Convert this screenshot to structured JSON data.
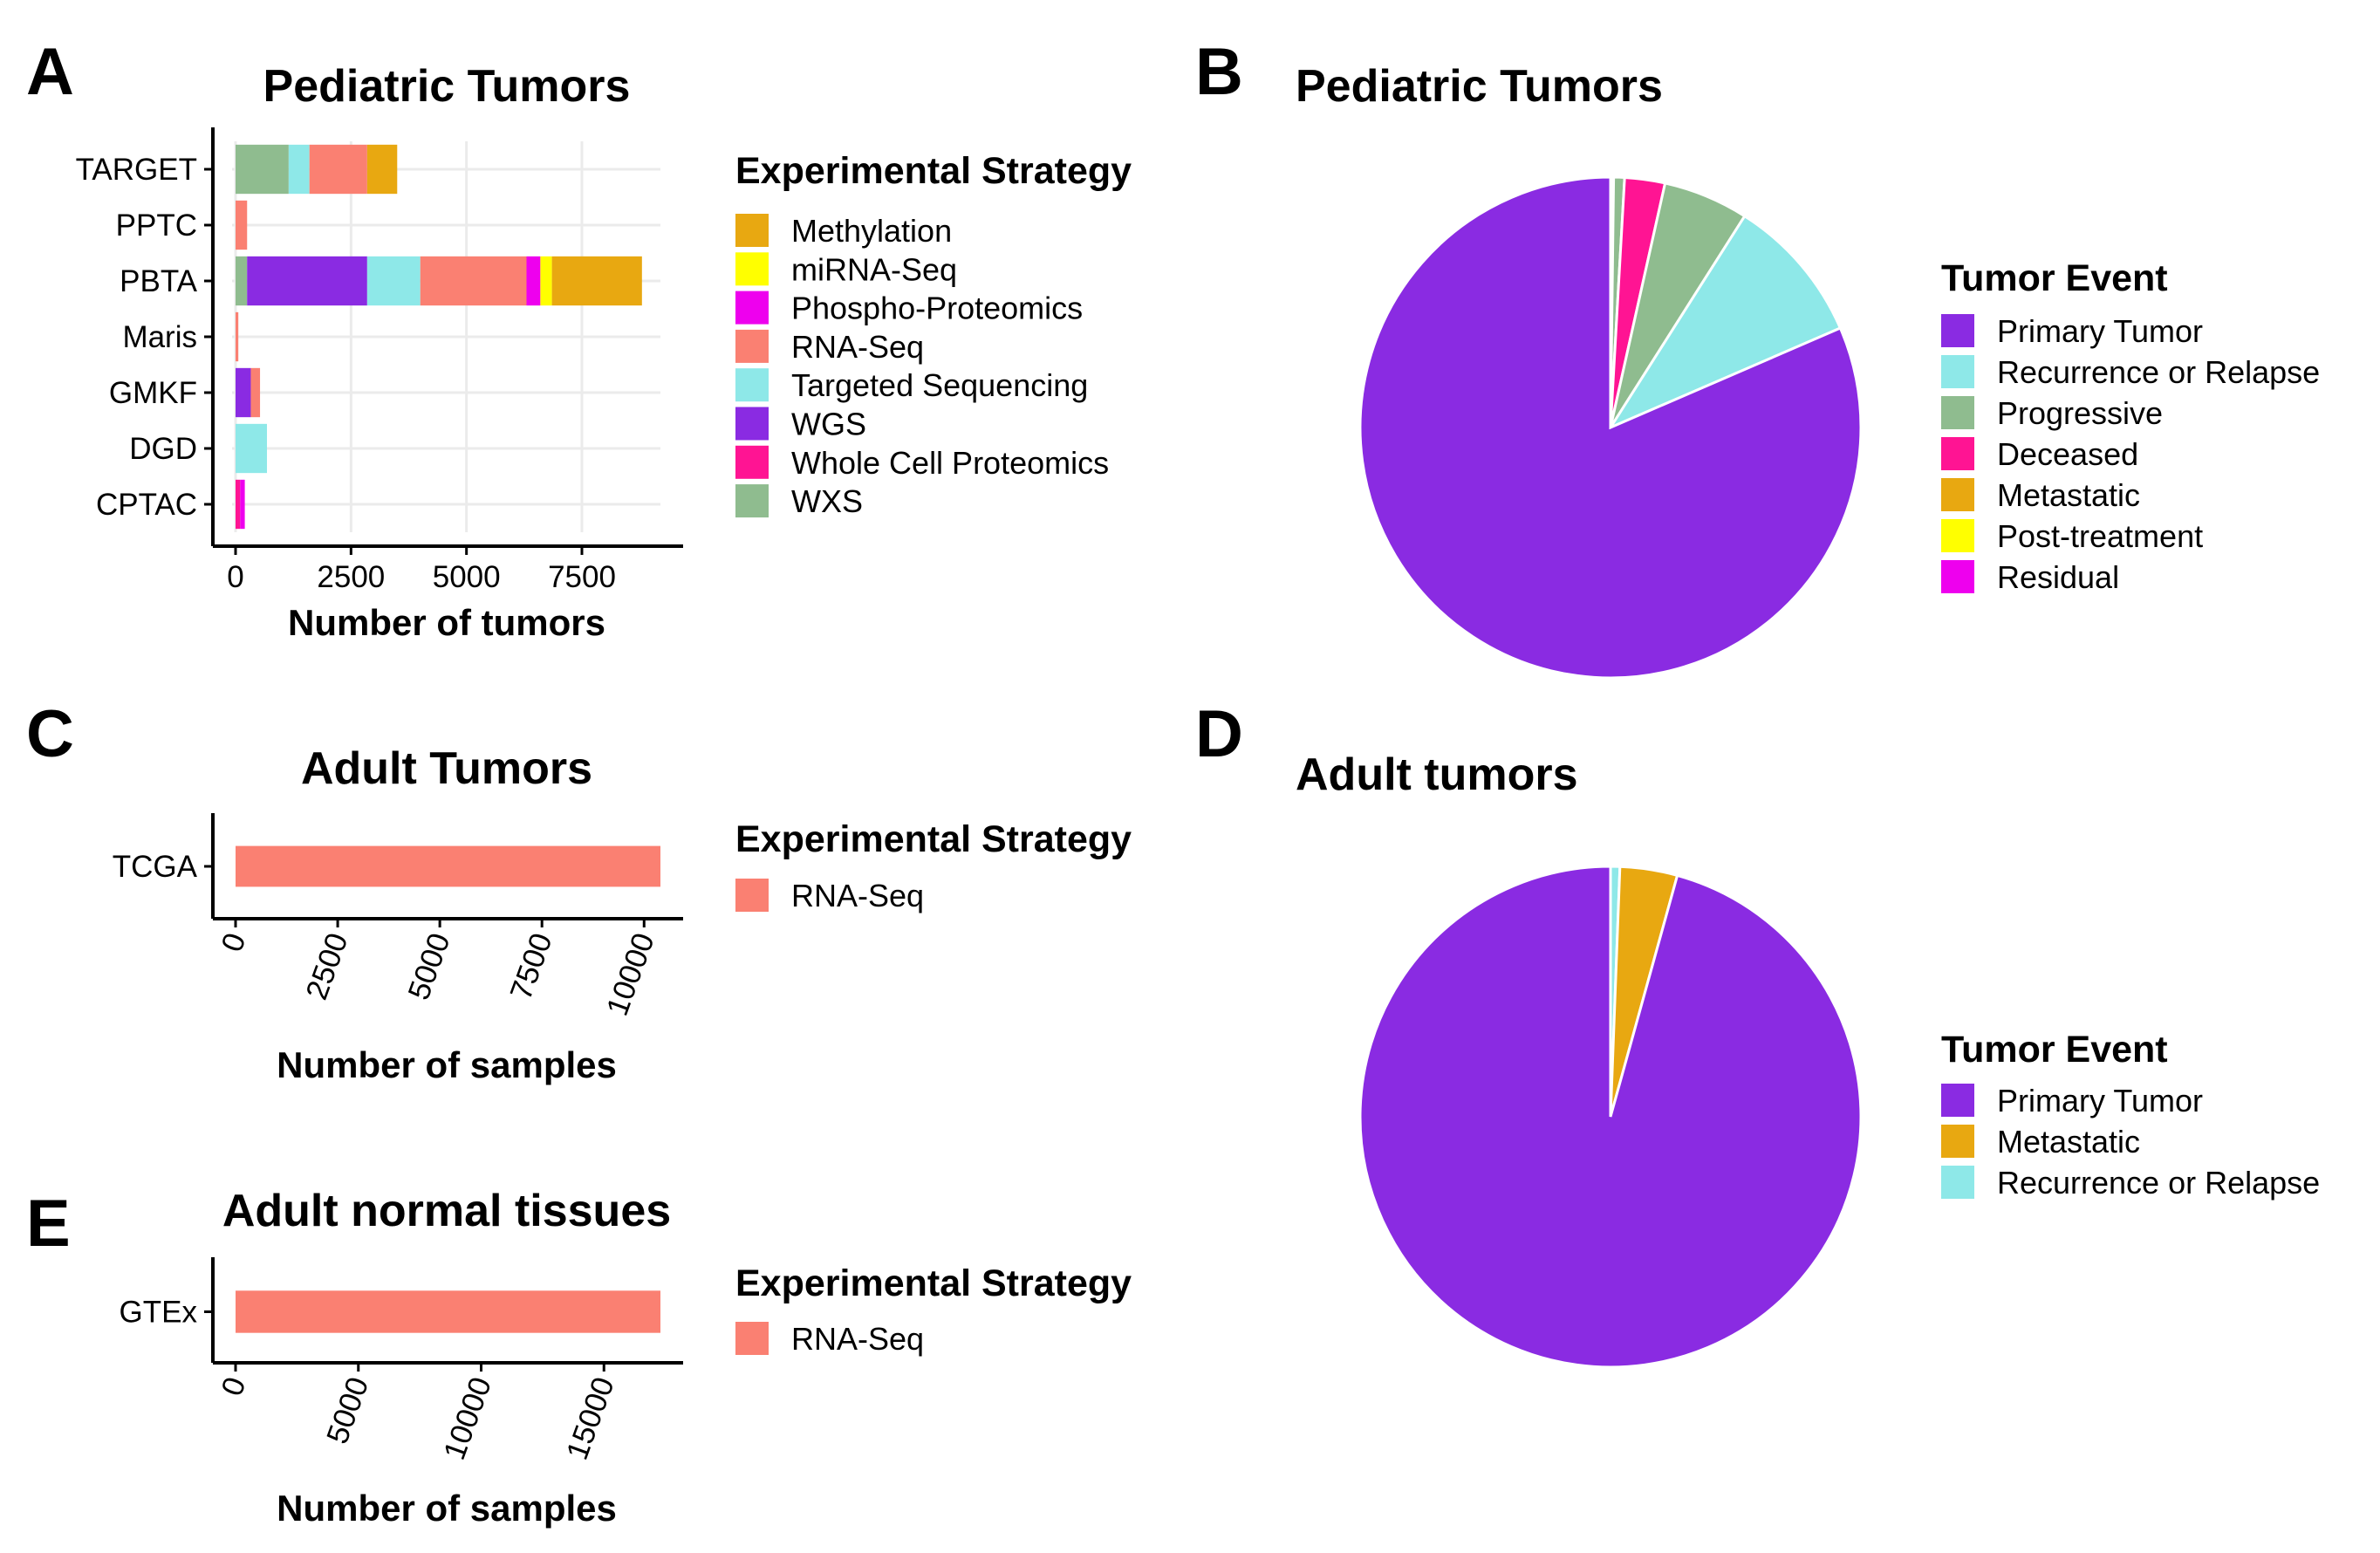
{
  "chart_data": [
    {
      "panel": "A",
      "type": "bar",
      "orientation": "horizontal",
      "stacked": true,
      "title": "Pediatric Tumors",
      "xlabel": "Number of tumors",
      "ylabel": "",
      "xlim": [
        0,
        9200
      ],
      "xticks": [
        0,
        2500,
        5000,
        7500
      ],
      "tick_labels": [
        "0",
        "2500",
        "5000",
        "7500"
      ],
      "grid": true,
      "categories": [
        "TARGET",
        "PPTC",
        "PBTA",
        "Maris",
        "GMKF",
        "DGD",
        "CPTAC"
      ],
      "legend_title": "Experimental Strategy",
      "series": [
        {
          "name": "WXS",
          "color": "#8fbc8f",
          "values": [
            1150,
            0,
            250,
            0,
            0,
            0,
            0
          ]
        },
        {
          "name": "Whole Cell Proteomics",
          "color": "#ff1493",
          "values": [
            0,
            0,
            0,
            0,
            0,
            0,
            100
          ]
        },
        {
          "name": "WGS",
          "color": "#8a2be2",
          "values": [
            0,
            0,
            2600,
            0,
            330,
            0,
            0
          ]
        },
        {
          "name": "Targeted Sequencing",
          "color": "#8ee8e8",
          "values": [
            450,
            0,
            1150,
            0,
            0,
            680,
            0
          ]
        },
        {
          "name": "RNA-Seq",
          "color": "#fa8072",
          "values": [
            1250,
            250,
            2300,
            60,
            200,
            0,
            0
          ]
        },
        {
          "name": "Phospho-Proteomics",
          "color": "#ee00ee",
          "values": [
            0,
            0,
            300,
            0,
            0,
            0,
            100
          ]
        },
        {
          "name": "miRNA-Seq",
          "color": "#ffff00",
          "values": [
            0,
            0,
            250,
            0,
            0,
            0,
            0
          ]
        },
        {
          "name": "Methylation",
          "color": "#e8a811",
          "values": [
            650,
            0,
            1950,
            0,
            0,
            0,
            0
          ]
        }
      ],
      "legend_order": [
        "Methylation",
        "miRNA-Seq",
        "Phospho-Proteomics",
        "RNA-Seq",
        "Targeted Sequencing",
        "WGS",
        "Whole Cell Proteomics",
        "WXS"
      ]
    },
    {
      "panel": "B",
      "type": "pie",
      "title": "Pediatric Tumors",
      "legend_title": "Tumor Event",
      "slices": [
        {
          "name": "Primary Tumor",
          "color": "#8a2be2",
          "value": 81.5
        },
        {
          "name": "Recurrence or Relapse",
          "color": "#8ee8e8",
          "value": 9.5
        },
        {
          "name": "Progressive",
          "color": "#8fbc8f",
          "value": 6.2
        },
        {
          "name": "Deceased",
          "color": "#ff1493",
          "value": 2.6
        },
        {
          "name": "Metastatic",
          "color": "#e8a811",
          "value": 0.1
        },
        {
          "name": "Post-treatment",
          "color": "#ffff00",
          "value": 0.05
        },
        {
          "name": "Residual",
          "color": "#ee00ee",
          "value": 0.05
        }
      ],
      "draw_order": [
        "Progressive",
        "Deceased",
        "Progressive",
        "Recurrence or Relapse",
        "Primary Tumor"
      ],
      "legend_order": [
        "Primary Tumor",
        "Recurrence or Relapse",
        "Progressive",
        "Deceased",
        "Metastatic",
        "Post-treatment",
        "Residual"
      ]
    },
    {
      "panel": "C",
      "type": "bar",
      "orientation": "horizontal",
      "title": "Adult Tumors",
      "xlabel": "Number of samples",
      "ylabel": "",
      "xlim": [
        0,
        10400
      ],
      "xticks": [
        0,
        2500,
        5000,
        7500,
        10000
      ],
      "tick_labels": [
        "0",
        "2500",
        "5000",
        "7500",
        "10000"
      ],
      "grid": false,
      "categories": [
        "TCGA"
      ],
      "legend_title": "Experimental Strategy",
      "series": [
        {
          "name": "RNA-Seq",
          "color": "#fa8072",
          "values": [
            10400
          ]
        }
      ]
    },
    {
      "panel": "D",
      "type": "pie",
      "title": "Adult tumors",
      "legend_title": "Tumor Event",
      "slices": [
        {
          "name": "Primary Tumor",
          "color": "#8a2be2",
          "value": 95.7
        },
        {
          "name": "Metastatic",
          "color": "#e8a811",
          "value": 3.7
        },
        {
          "name": "Recurrence or Relapse",
          "color": "#8ee8e8",
          "value": 0.6
        }
      ],
      "legend_order": [
        "Primary Tumor",
        "Metastatic",
        "Recurrence or Relapse"
      ]
    },
    {
      "panel": "E",
      "type": "bar",
      "orientation": "horizontal",
      "title": "Adult normal tissues",
      "xlabel": "Number of samples",
      "ylabel": "",
      "xlim": [
        0,
        17300
      ],
      "xticks": [
        0,
        5000,
        10000,
        15000
      ],
      "tick_labels": [
        "0",
        "5000",
        "10000",
        "15000"
      ],
      "grid": false,
      "categories": [
        "GTEx"
      ],
      "legend_title": "Experimental Strategy",
      "series": [
        {
          "name": "RNA-Seq",
          "color": "#fa8072",
          "values": [
            17300
          ]
        }
      ]
    }
  ]
}
